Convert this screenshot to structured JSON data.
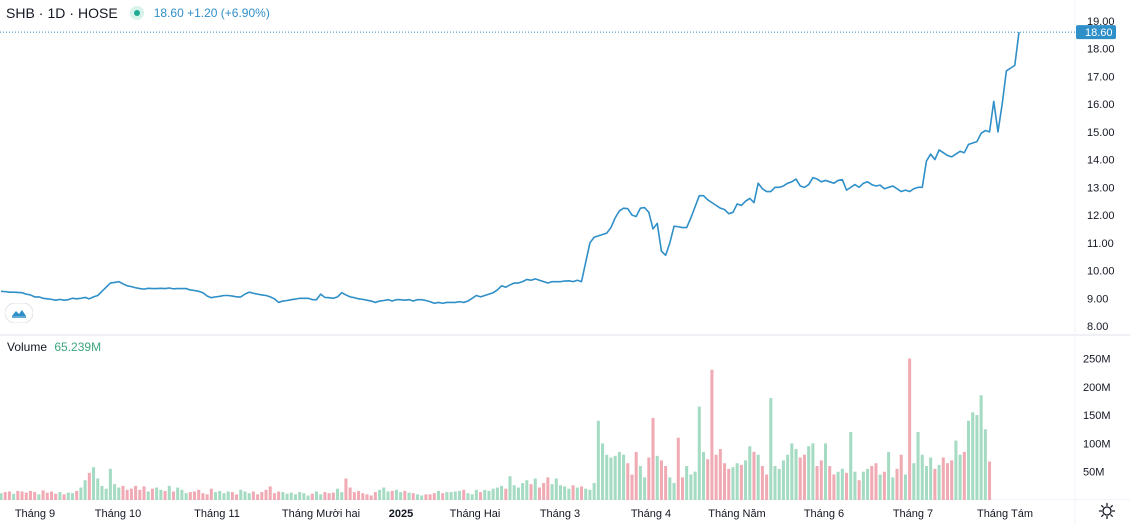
{
  "header": {
    "symbol": "SHB",
    "interval": "1D",
    "exchange": "HOSE",
    "price_text": "18.60 +1.20 (+6.90%)"
  },
  "volume_legend": {
    "label": "Volume",
    "value": "65.239M"
  },
  "colors": {
    "line": "#2f8fc8",
    "price_badge": "#2f8fc8",
    "volume_up": "#a5dbc2",
    "volume_down": "#f0aab4",
    "grid_divider": "#e0e3eb",
    "axis_text": "#131722"
  },
  "icons": {
    "logo": "tradingview-logo-icon",
    "settings": "gear-icon"
  },
  "chart_data": [
    {
      "type": "line",
      "series": [
        {
          "values": [
            9.25,
            9.24,
            9.22,
            9.22,
            9.21,
            9.2,
            9.15,
            9.12,
            9.05,
            9.05,
            9.0,
            8.98,
            8.96,
            8.93,
            8.96,
            8.93,
            8.95,
            9.0,
            8.98,
            9.0,
            9.03,
            8.98,
            9.05,
            9.1,
            9.25,
            9.4,
            9.55,
            9.57,
            9.6,
            9.52,
            9.45,
            9.42,
            9.38,
            9.35,
            9.33,
            9.36,
            9.35,
            9.35,
            9.36,
            9.35,
            9.37,
            9.34,
            9.35,
            9.35,
            9.35,
            9.3,
            9.28,
            9.25,
            9.2,
            9.08,
            9.02,
            9.05,
            9.07,
            9.1,
            9.1,
            9.08,
            9.05,
            9.05,
            9.15,
            9.22,
            9.18,
            9.15,
            9.12,
            9.1,
            9.05,
            8.98,
            8.85,
            8.9,
            8.92,
            8.95,
            8.97,
            9.0,
            9.0,
            9.0,
            8.95,
            8.95,
            9.15,
            9.03,
            9.02,
            9.0,
            9.05,
            9.2,
            9.12,
            9.05,
            9.02,
            8.98,
            8.96,
            8.93,
            8.9,
            8.85,
            8.9,
            8.92,
            8.95,
            8.9,
            8.95,
            8.95,
            8.93,
            8.95,
            8.9,
            8.95,
            8.95,
            8.92,
            8.88,
            8.82,
            8.85,
            8.82,
            8.85,
            8.85,
            8.85,
            8.88,
            8.85,
            8.9,
            9.0,
            9.1,
            9.05,
            9.1,
            9.15,
            9.2,
            9.3,
            9.45,
            9.4,
            9.48,
            9.55,
            9.55,
            9.6,
            9.68,
            9.65,
            9.7,
            9.65,
            9.6,
            9.55,
            9.6,
            9.6,
            9.6,
            9.62,
            9.63,
            9.6,
            9.65,
            9.6,
            10.3,
            11.0,
            11.2,
            11.25,
            11.3,
            11.35,
            11.55,
            11.9,
            12.15,
            12.25,
            12.23,
            12.0,
            11.95,
            12.25,
            12.27,
            12.1,
            11.5,
            11.7,
            10.7,
            10.55,
            11.0,
            11.6,
            11.58,
            11.55,
            11.55,
            11.9,
            12.3,
            12.7,
            12.7,
            12.55,
            12.45,
            12.35,
            12.25,
            12.2,
            12.05,
            12.1,
            12.4,
            12.35,
            12.5,
            12.6,
            12.45,
            13.15,
            12.95,
            12.85,
            12.85,
            13.0,
            13.0,
            13.05,
            13.15,
            13.2,
            13.3,
            13.05,
            13.0,
            13.1,
            13.35,
            13.3,
            13.2,
            13.25,
            13.2,
            13.15,
            13.25,
            13.28,
            12.9,
            13.0,
            13.1,
            13.0,
            13.15,
            13.2,
            13.1,
            13.05,
            13.08,
            12.95,
            13.0,
            13.05,
            12.95,
            12.85,
            12.9,
            12.85,
            12.95,
            13.0,
            13.0,
            13.95,
            14.2,
            14.0,
            14.35,
            14.25,
            14.15,
            14.1,
            14.2,
            14.3,
            14.25,
            14.55,
            14.6,
            14.65,
            14.95,
            15.05,
            15.0,
            16.1,
            15.0,
            16.0,
            17.2,
            17.3,
            17.4,
            18.6
          ]
        }
      ],
      "ylim": [
        8.0,
        19.0
      ],
      "y_ticks": [
        "19.00",
        "18.00",
        "17.00",
        "16.00",
        "15.00",
        "14.00",
        "13.00",
        "12.00",
        "11.00",
        "10.00",
        "9.00",
        "8.00"
      ],
      "last_value_label": "18.60",
      "grid": false
    },
    {
      "type": "bar",
      "series": [
        {
          "values": [
            12,
            14,
            15,
            11,
            16,
            15,
            13,
            16,
            14,
            10,
            17,
            13,
            15,
            11,
            14,
            10,
            13,
            12,
            16,
            22,
            35,
            48,
            58,
            38,
            25,
            20,
            55,
            28,
            22,
            25,
            18,
            20,
            25,
            18,
            24,
            15,
            20,
            22,
            18,
            16,
            25,
            15,
            22,
            18,
            12,
            14,
            15,
            18,
            12,
            10,
            20,
            14,
            16,
            12,
            15,
            14,
            10,
            18,
            15,
            12,
            15,
            10,
            14,
            18,
            24,
            12,
            15,
            14,
            11,
            13,
            10,
            14,
            12,
            8,
            11,
            15,
            10,
            14,
            12,
            13,
            20,
            14,
            38,
            22,
            14,
            16,
            12,
            10,
            8,
            14,
            18,
            22,
            15,
            16,
            18,
            14,
            16,
            13,
            12,
            10,
            8,
            10,
            10,
            12,
            16,
            12,
            14,
            14,
            15,
            16,
            18,
            12,
            10,
            18,
            14,
            18,
            16,
            20,
            22,
            25,
            20,
            42,
            26,
            22,
            30,
            35,
            28,
            38,
            22,
            30,
            40,
            28,
            38,
            26,
            24,
            20,
            26,
            22,
            24,
            20,
            18,
            30,
            140,
            100,
            80,
            75,
            78,
            85,
            80,
            65,
            45,
            85,
            60,
            40,
            75,
            145,
            78,
            70,
            60,
            40,
            30,
            110,
            40,
            60,
            45,
            50,
            165,
            85,
            72,
            230,
            80,
            90,
            65,
            55,
            58,
            65,
            62,
            70,
            95,
            85,
            80,
            60,
            45,
            180,
            60,
            55,
            70,
            80,
            100,
            90,
            75,
            80,
            95,
            100,
            60,
            70,
            100,
            60,
            45,
            50,
            55,
            48,
            120,
            50,
            35,
            50,
            55,
            60,
            65,
            45,
            50,
            85,
            40,
            55,
            80,
            45,
            250,
            65,
            120,
            80,
            60,
            75,
            55,
            62,
            75,
            65,
            70,
            105,
            80,
            85,
            140,
            155,
            150,
            185,
            125,
            68
          ]
        }
      ],
      "ylim": [
        0,
        265
      ],
      "y_ticks": [
        "250M",
        "200M",
        "150M",
        "100M",
        "50M"
      ]
    }
  ],
  "x_axis": {
    "labels": [
      "Tháng 9",
      "Tháng 10",
      "Tháng 11",
      "Tháng Mười hai",
      "2025",
      "Tháng Hai",
      "Tháng 3",
      "Tháng 4",
      "Tháng Năm",
      "Tháng 6",
      "Tháng 7",
      "Tháng Tám"
    ],
    "bold_label": "2025"
  }
}
